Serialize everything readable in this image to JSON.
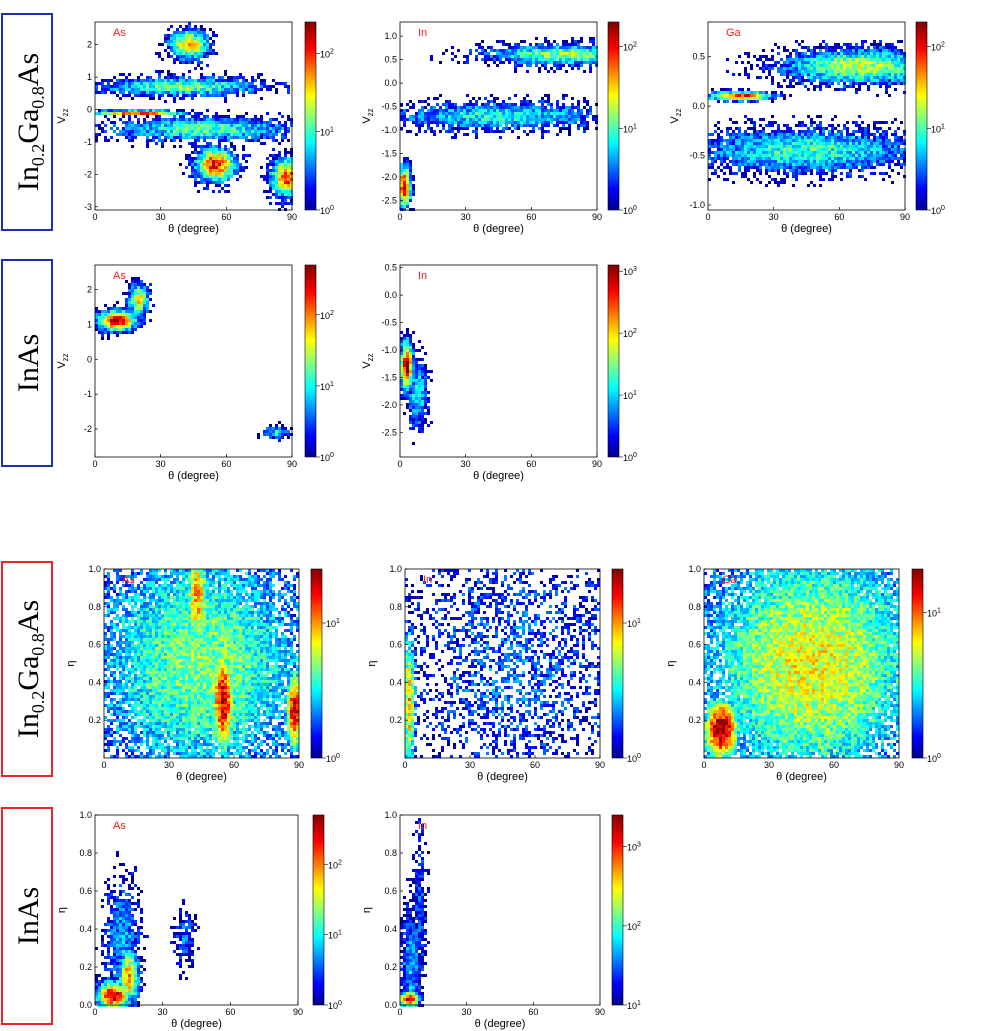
{
  "colors": {
    "blue_frame": "#1f2fa8",
    "red_frame": "#e8262a",
    "element_label": "#ff1a1a"
  },
  "row_labels": {
    "row1": [
      "In",
      "0.2",
      "Ga",
      "0.8",
      "As"
    ],
    "row2": "InAs",
    "row3": [
      "In",
      "0.2",
      "Ga",
      "0.8",
      "As"
    ],
    "row4": "InAs"
  },
  "colorbar_label_base": "10",
  "chart_data": [
    {
      "type": "heatmap",
      "id": "p11",
      "element": "As",
      "xlabel": "θ (degree)",
      "ylabel": "V_zz",
      "xlim": [
        0,
        90
      ],
      "ylim": [
        -3.1,
        2.7
      ],
      "xticks": [
        "0",
        "30",
        "60",
        "90"
      ],
      "yticks": [
        "2",
        "1",
        "0",
        "-1",
        "-2",
        "-3"
      ],
      "ytick_values": [
        2,
        1,
        0,
        -1,
        -2,
        -3
      ],
      "colorbar_exponents": [
        "0",
        "1",
        "2"
      ],
      "colorbar_range_log": [
        0,
        2.4
      ],
      "blobs": [
        {
          "x": 43,
          "y": 2.0,
          "sx": 6,
          "sy": 0.3,
          "v": 1.7
        },
        {
          "x": 55,
          "y": -1.7,
          "sx": 6,
          "sy": 0.35,
          "v": 2.1
        },
        {
          "x": 88,
          "y": -2.1,
          "sx": 5,
          "sy": 0.4,
          "v": 2.0
        },
        {
          "x": 20,
          "y": -0.1,
          "sx": 14,
          "sy": 0.05,
          "v": 2.2
        },
        {
          "x": 40,
          "y": 0.7,
          "sx": 25,
          "sy": 0.2,
          "v": 1.2
        },
        {
          "x": 50,
          "y": -0.6,
          "sx": 28,
          "sy": 0.25,
          "v": 1.1
        }
      ]
    },
    {
      "type": "heatmap",
      "id": "p12",
      "element": "In",
      "xlabel": "θ (degree)",
      "ylabel": "V_zz",
      "xlim": [
        0,
        90
      ],
      "ylim": [
        -2.7,
        1.3
      ],
      "xticks": [
        "0",
        "30",
        "60",
        "90"
      ],
      "yticks": [
        "1.0",
        "0.5",
        "0.0",
        "-0.5",
        "-1.0",
        "-1.5",
        "-2.0",
        "-2.5"
      ],
      "ytick_values": [
        1.0,
        0.5,
        0.0,
        -0.5,
        -1.0,
        -1.5,
        -2.0,
        -2.5
      ],
      "colorbar_exponents": [
        "0",
        "1",
        "2"
      ],
      "colorbar_range_log": [
        0,
        2.3
      ],
      "blobs": [
        {
          "x": 2,
          "y": -2.2,
          "sx": 2,
          "sy": 0.3,
          "v": 2.2
        },
        {
          "x": 75,
          "y": 0.6,
          "sx": 25,
          "sy": 0.15,
          "v": 1.2
        },
        {
          "x": 45,
          "y": -0.7,
          "sx": 35,
          "sy": 0.2,
          "v": 0.9
        }
      ]
    },
    {
      "type": "heatmap",
      "id": "p13",
      "element": "Ga",
      "xlabel": "θ (degree)",
      "ylabel": "V_zz",
      "xlim": [
        0,
        90
      ],
      "ylim": [
        -1.05,
        0.85
      ],
      "xticks": [
        "0",
        "30",
        "60",
        "90"
      ],
      "yticks": [
        "0.5",
        "0.0",
        "-0.5",
        "-1.0"
      ],
      "ytick_values": [
        0.5,
        0.0,
        -0.5,
        -1.0
      ],
      "colorbar_exponents": [
        "0",
        "1",
        "2"
      ],
      "colorbar_range_log": [
        0,
        2.3
      ],
      "blobs": [
        {
          "x": 15,
          "y": 0.1,
          "sx": 10,
          "sy": 0.03,
          "v": 2.0
        },
        {
          "x": 70,
          "y": 0.4,
          "sx": 25,
          "sy": 0.12,
          "v": 1.3
        },
        {
          "x": 45,
          "y": -0.45,
          "sx": 35,
          "sy": 0.15,
          "v": 1.0
        }
      ]
    },
    {
      "type": "heatmap",
      "id": "p21",
      "element": "As",
      "xlabel": "θ (degree)",
      "ylabel": "V_zz",
      "xlim": [
        0,
        90
      ],
      "ylim": [
        -2.8,
        2.7
      ],
      "xticks": [
        "0",
        "30",
        "60",
        "90"
      ],
      "yticks": [
        "2",
        "1",
        "0",
        "-1",
        "-2"
      ],
      "ytick_values": [
        2,
        1,
        0,
        -1,
        -2
      ],
      "colorbar_exponents": [
        "0",
        "1",
        "2"
      ],
      "colorbar_range_log": [
        0,
        2.7
      ],
      "blobs": [
        {
          "x": 10,
          "y": 1.1,
          "sx": 6,
          "sy": 0.2,
          "v": 2.6
        },
        {
          "x": 20,
          "y": 1.7,
          "sx": 3,
          "sy": 0.3,
          "v": 1.8
        },
        {
          "x": 83,
          "y": -2.1,
          "sx": 4,
          "sy": 0.12,
          "v": 1.0
        }
      ]
    },
    {
      "type": "heatmap",
      "id": "p22",
      "element": "In",
      "xlabel": "θ (degree)",
      "ylabel": "V_zz",
      "xlim": [
        0,
        90
      ],
      "ylim": [
        -2.95,
        0.55
      ],
      "xticks": [
        "0",
        "30",
        "60",
        "90"
      ],
      "yticks": [
        "0.5",
        "0.0",
        "-0.5",
        "-1.0",
        "-1.5",
        "-2.0",
        "-2.5"
      ],
      "ytick_values": [
        0.5,
        0.0,
        -0.5,
        -1.0,
        -1.5,
        -2.0,
        -2.5
      ],
      "colorbar_exponents": [
        "0",
        "1",
        "2",
        "3"
      ],
      "colorbar_range_log": [
        0,
        3.1
      ],
      "blobs": [
        {
          "x": 3,
          "y": -1.3,
          "sx": 2,
          "sy": 0.3,
          "v": 3.0
        },
        {
          "x": 8,
          "y": -1.8,
          "sx": 3,
          "sy": 0.4,
          "v": 1.2
        }
      ]
    },
    {
      "type": "heatmap",
      "id": "p31",
      "element": "As",
      "xlabel": "θ (degree)",
      "ylabel": "η",
      "xlim": [
        0,
        90
      ],
      "ylim": [
        0,
        1.0
      ],
      "xticks": [
        "0",
        "30",
        "60",
        "90"
      ],
      "yticks": [
        "1.0",
        "0.8",
        "0.6",
        "0.4",
        "0.2"
      ],
      "ytick_values": [
        1.0,
        0.8,
        0.6,
        0.4,
        0.2
      ],
      "colorbar_exponents": [
        "0",
        "1"
      ],
      "colorbar_range_log": [
        0,
        1.4
      ],
      "blobs": [
        {
          "x": 55,
          "y": 0.3,
          "sx": 4,
          "sy": 0.2,
          "v": 1.3
        },
        {
          "x": 43,
          "y": 0.85,
          "sx": 4,
          "sy": 0.2,
          "v": 1.0
        },
        {
          "x": 88,
          "y": 0.25,
          "sx": 3,
          "sy": 0.15,
          "v": 1.3
        },
        {
          "x": 45,
          "y": 0.5,
          "sx": 40,
          "sy": 0.5,
          "v": 0.7
        }
      ]
    },
    {
      "type": "heatmap",
      "id": "p32",
      "element": "In",
      "xlabel": "θ (degree)",
      "ylabel": "η",
      "xlim": [
        0,
        90
      ],
      "ylim": [
        0,
        1.0
      ],
      "xticks": [
        "0",
        "30",
        "60",
        "90"
      ],
      "yticks": [
        "1.0",
        "0.8",
        "0.6",
        "0.4",
        "0.2"
      ],
      "ytick_values": [
        1.0,
        0.8,
        0.6,
        0.4,
        0.2
      ],
      "colorbar_exponents": [
        "0",
        "1"
      ],
      "colorbar_range_log": [
        0,
        1.4
      ],
      "blobs": [
        {
          "x": 2,
          "y": 0.3,
          "sx": 2,
          "sy": 0.25,
          "v": 1.0
        },
        {
          "x": 50,
          "y": 0.5,
          "sx": 40,
          "sy": 0.5,
          "v": 0.3
        }
      ]
    },
    {
      "type": "heatmap",
      "id": "p33",
      "element": "Ga",
      "xlabel": "θ (degree)",
      "ylabel": "η",
      "xlim": [
        0,
        90
      ],
      "ylim": [
        0,
        1.0
      ],
      "xticks": [
        "0",
        "30",
        "60",
        "90"
      ],
      "yticks": [
        "1.0",
        "0.8",
        "0.6",
        "0.4",
        "0.2"
      ],
      "ytick_values": [
        1.0,
        0.8,
        0.6,
        0.4,
        0.2
      ],
      "colorbar_exponents": [
        "0",
        "1"
      ],
      "colorbar_range_log": [
        0,
        1.3
      ],
      "blobs": [
        {
          "x": 8,
          "y": 0.15,
          "sx": 6,
          "sy": 0.12,
          "v": 1.3
        },
        {
          "x": 50,
          "y": 0.5,
          "sx": 40,
          "sy": 0.5,
          "v": 0.8
        }
      ]
    },
    {
      "type": "heatmap",
      "id": "p41",
      "element": "As",
      "xlabel": "θ (degree)",
      "ylabel": "η",
      "xlim": [
        0,
        90
      ],
      "ylim": [
        0,
        1.0
      ],
      "xticks": [
        "0",
        "30",
        "60",
        "90"
      ],
      "yticks": [
        "1.0",
        "0.8",
        "0.6",
        "0.4",
        "0.2",
        "0.0"
      ],
      "ytick_values": [
        1.0,
        0.8,
        0.6,
        0.4,
        0.2,
        0.0
      ],
      "colorbar_exponents": [
        "0",
        "1",
        "2"
      ],
      "colorbar_range_log": [
        0,
        2.7
      ],
      "blobs": [
        {
          "x": 8,
          "y": 0.05,
          "sx": 5,
          "sy": 0.05,
          "v": 2.6
        },
        {
          "x": 15,
          "y": 0.15,
          "sx": 3,
          "sy": 0.1,
          "v": 2.0
        },
        {
          "x": 12,
          "y": 0.35,
          "sx": 5,
          "sy": 0.2,
          "v": 0.8
        },
        {
          "x": 40,
          "y": 0.35,
          "sx": 3,
          "sy": 0.1,
          "v": 0.6
        }
      ]
    },
    {
      "type": "heatmap",
      "id": "p42",
      "element": "In",
      "xlabel": "θ (degree)",
      "ylabel": "η",
      "xlim": [
        0,
        90
      ],
      "ylim": [
        0,
        1.0
      ],
      "xticks": [
        "0",
        "30",
        "60",
        "90"
      ],
      "yticks": [
        "1.0",
        "0.8",
        "0.6",
        "0.4",
        "0.2",
        "0.0"
      ],
      "ytick_values": [
        1.0,
        0.8,
        0.6,
        0.4,
        0.2,
        0.0
      ],
      "colorbar_exponents": [
        "1",
        "2",
        "3"
      ],
      "colorbar_range_log": [
        0,
        3.4
      ],
      "blobs": [
        {
          "x": 4,
          "y": 0.03,
          "sx": 3,
          "sy": 0.03,
          "v": 3.2
        },
        {
          "x": 5,
          "y": 0.2,
          "sx": 3,
          "sy": 0.2,
          "v": 1.0
        },
        {
          "x": 9,
          "y": 0.5,
          "sx": 2,
          "sy": 0.3,
          "v": 0.6
        }
      ]
    }
  ]
}
